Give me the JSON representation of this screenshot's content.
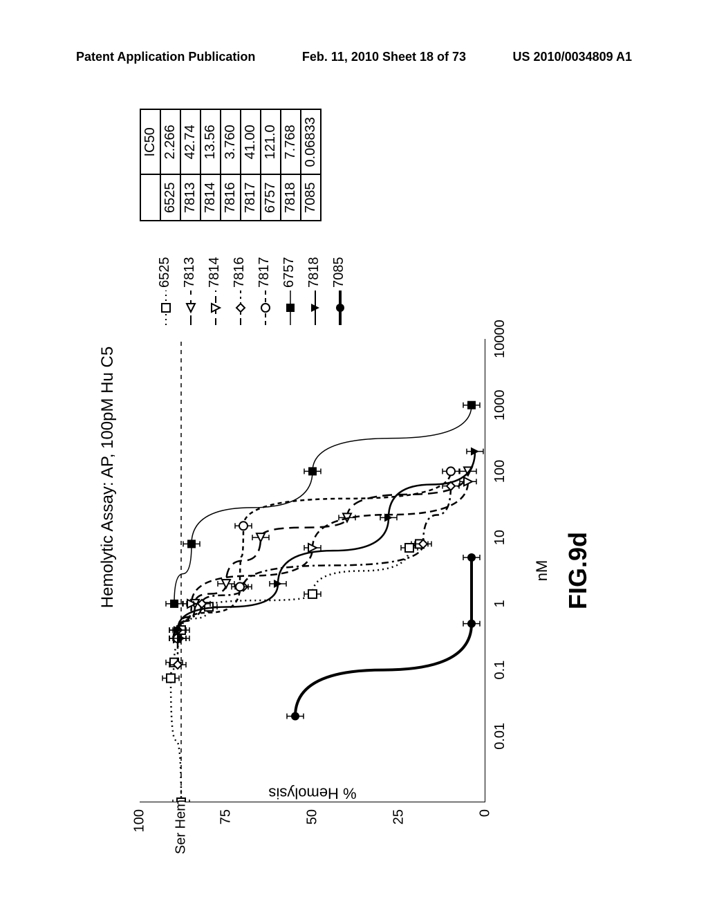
{
  "header": {
    "left": "Patent Application Publication",
    "center": "Feb. 11, 2010  Sheet 18 of 73",
    "right": "US 2010/0034809 A1"
  },
  "chart": {
    "title": "Hemolytic Assay: AP, 100pM Hu C5",
    "x_axis_label": "nM",
    "y_axis_label": "% Hemolysis",
    "figure_label": "FIG.9d",
    "ser_hem_label": "Ser Hem",
    "y_ticks": [
      0,
      25,
      50,
      75,
      100
    ],
    "x_ticks": [
      0.01,
      0.1,
      1,
      10,
      100,
      1000,
      10000
    ],
    "xlim": [
      0.001,
      10000
    ],
    "ylim": [
      0,
      100
    ],
    "ser_hem_value": 88,
    "background_color": "#ffffff",
    "axis_color": "#000000",
    "series": [
      {
        "id": "6525",
        "marker": "square-open",
        "line_style": "dotted",
        "color": "#000000",
        "points": [
          [
            0.001,
            88
          ],
          [
            0.075,
            91
          ],
          [
            0.13,
            90
          ],
          [
            0.4,
            88
          ],
          [
            0.9,
            80
          ],
          [
            1.4,
            50
          ],
          [
            7,
            22
          ],
          [
            8,
            19
          ]
        ]
      },
      {
        "id": "7813",
        "marker": "triangle-open-left",
        "line_style": "long-dash",
        "color": "#000000",
        "points": [
          [
            0.3,
            89
          ],
          [
            1,
            84
          ],
          [
            2,
            75
          ],
          [
            10,
            65
          ],
          [
            20,
            40
          ],
          [
            100,
            5
          ]
        ]
      },
      {
        "id": "7814",
        "marker": "triangle-open-down",
        "line_style": "med-dash",
        "color": "#000000",
        "points": [
          [
            0.3,
            89
          ],
          [
            1,
            85
          ],
          [
            7,
            50
          ],
          [
            70,
            5
          ]
        ]
      },
      {
        "id": "7816",
        "marker": "diamond-open",
        "line_style": "dash-dot",
        "color": "#000000",
        "points": [
          [
            0.12,
            89
          ],
          [
            0.4,
            89
          ],
          [
            1,
            82
          ],
          [
            1.8,
            70
          ],
          [
            8,
            18
          ],
          [
            60,
            10
          ]
        ]
      },
      {
        "id": "7817",
        "marker": "circle-open",
        "line_style": "short-dash",
        "color": "#000000",
        "points": [
          [
            0.3,
            89
          ],
          [
            1.8,
            71
          ],
          [
            15,
            70
          ],
          [
            100,
            10
          ]
        ]
      },
      {
        "id": "6757",
        "marker": "square-solid",
        "line_style": "solid-thin",
        "color": "#000000",
        "points": [
          [
            1,
            90
          ],
          [
            8,
            85
          ],
          [
            100,
            50
          ],
          [
            1000,
            4
          ]
        ]
      },
      {
        "id": "7818",
        "marker": "triangle-solid",
        "line_style": "solid",
        "color": "#000000",
        "points": [
          [
            0.3,
            88
          ],
          [
            0.4,
            89
          ],
          [
            2,
            60
          ],
          [
            20,
            28
          ],
          [
            200,
            3
          ]
        ]
      },
      {
        "id": "7085",
        "marker": "circle-solid",
        "line_style": "solid-thick",
        "color": "#000000",
        "points": [
          [
            0.02,
            55
          ],
          [
            0.5,
            4
          ],
          [
            5,
            4
          ]
        ]
      }
    ]
  },
  "legend": {
    "items": [
      {
        "label": "6525",
        "marker": "square-open",
        "line_style": "dotted"
      },
      {
        "label": "7813",
        "marker": "triangle-open-left",
        "line_style": "long-dash"
      },
      {
        "label": "7814",
        "marker": "triangle-open-down",
        "line_style": "med-dash"
      },
      {
        "label": "7816",
        "marker": "diamond-open",
        "line_style": "dash-dot"
      },
      {
        "label": "7817",
        "marker": "circle-open",
        "line_style": "short-dash"
      },
      {
        "label": "6757",
        "marker": "square-solid",
        "line_style": "solid-thin"
      },
      {
        "label": "7818",
        "marker": "triangle-solid",
        "line_style": "solid"
      },
      {
        "label": "7085",
        "marker": "circle-solid",
        "line_style": "solid-thick"
      }
    ]
  },
  "ic50_table": {
    "header": [
      "",
      "IC50"
    ],
    "rows": [
      [
        "6525",
        "2.266"
      ],
      [
        "7813",
        "42.74"
      ],
      [
        "7814",
        "13.56"
      ],
      [
        "7816",
        "3.760"
      ],
      [
        "7817",
        "41.00"
      ],
      [
        "6757",
        "121.0"
      ],
      [
        "7818",
        "7.768"
      ],
      [
        "7085",
        "0.06833"
      ]
    ]
  }
}
